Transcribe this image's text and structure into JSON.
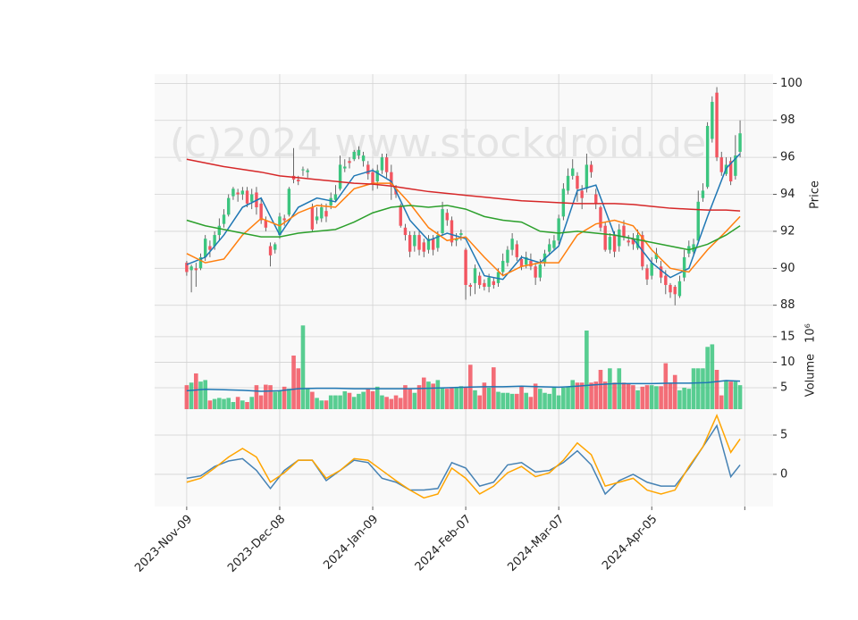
{
  "chart_data": [
    {
      "type": "candlestick",
      "ylabel": "Price",
      "watermark": "(c)2024 www.stockdroid.de",
      "up_color": "#3cc57f",
      "down_color": "#f25560",
      "wick_color": "#444444",
      "ylim": [
        87.6,
        100.5
      ],
      "yticks": [
        88,
        90,
        92,
        94,
        96,
        98,
        100
      ],
      "grid": true,
      "open": [
        90.3,
        89.9,
        90.0,
        90.0,
        90.6,
        91.2,
        91.2,
        91.8,
        92.4,
        92.9,
        93.9,
        94.1,
        94.0,
        94.2,
        93.6,
        94.1,
        93.5,
        92.6,
        91.2,
        91.0,
        91.8,
        92.7,
        92.9,
        95.0,
        94.8,
        95.3,
        95.2,
        93.3,
        92.6,
        92.7,
        93.1,
        93.4,
        93.7,
        94.3,
        95.4,
        95.8,
        95.9,
        96.1,
        95.8,
        95.6,
        95.2,
        94.7,
        95.3,
        96.0,
        95.2,
        94.3,
        93.4,
        92.2,
        91.8,
        91.2,
        91.8,
        91.4,
        91.0,
        91.6,
        91.1,
        91.9,
        93.0,
        92.6,
        91.5,
        91.8,
        91.0,
        89.1,
        89.2,
        89.6,
        89.2,
        89.0,
        89.3,
        89.2,
        89.8,
        90.3,
        91.0,
        91.3,
        90.5,
        90.2,
        90.4,
        90.1,
        89.5,
        90.3,
        90.9,
        91.1,
        91.5,
        92.8,
        94.2,
        95.0,
        95.0,
        94.2,
        94.3,
        95.6,
        94.0,
        93.3,
        92.3,
        91.0,
        91.8,
        91.2,
        92.3,
        91.5,
        91.6,
        91.1,
        91.8,
        90.0,
        89.6,
        90.5,
        90.1,
        89.6,
        89.1,
        89.0,
        88.5,
        89.5,
        90.8,
        90.9,
        91.5,
        93.8,
        94.4,
        97.0,
        99.5,
        96.0,
        95.1,
        95.8,
        95.0,
        96.3
      ],
      "high": [
        90.4,
        90.2,
        90.3,
        90.8,
        91.8,
        91.5,
        92.0,
        92.7,
        93.2,
        94.0,
        94.4,
        94.3,
        94.4,
        94.4,
        94.3,
        94.4,
        93.8,
        92.8,
        91.4,
        91.4,
        93.0,
        92.9,
        94.4,
        96.5,
        95.0,
        95.5,
        95.4,
        93.5,
        93.3,
        93.5,
        93.5,
        94.1,
        94.5,
        96.1,
        95.9,
        96.0,
        96.4,
        96.6,
        96.3,
        95.8,
        95.4,
        95.6,
        96.2,
        96.2,
        95.6,
        94.5,
        93.5,
        92.4,
        92.0,
        92.0,
        92.0,
        91.6,
        91.8,
        91.8,
        92.0,
        93.6,
        93.2,
        92.8,
        91.9,
        92.1,
        91.1,
        89.2,
        90.2,
        89.8,
        89.4,
        89.7,
        89.5,
        90.0,
        90.8,
        91.2,
        91.9,
        91.5,
        90.7,
        90.9,
        90.8,
        90.3,
        90.5,
        91.0,
        91.6,
        91.8,
        92.9,
        94.6,
        95.4,
        95.9,
        95.2,
        94.5,
        96.2,
        95.8,
        94.3,
        93.4,
        92.5,
        91.9,
        92.0,
        92.4,
        92.6,
        91.8,
        91.9,
        92.1,
        92.0,
        90.2,
        90.6,
        91.1,
        90.4,
        89.9,
        89.2,
        89.1,
        89.6,
        91.0,
        91.5,
        91.6,
        94.2,
        94.6,
        97.9,
        99.3,
        99.8,
        96.3,
        96.0,
        96.0,
        97.2,
        98.0
      ],
      "low": [
        89.6,
        88.7,
        89.0,
        89.9,
        90.4,
        90.6,
        91.0,
        91.5,
        92.2,
        92.8,
        93.7,
        93.6,
        93.7,
        93.3,
        93.2,
        92.9,
        92.4,
        92.0,
        90.1,
        90.8,
        91.6,
        92.3,
        92.8,
        94.6,
        94.5,
        95.0,
        94.9,
        92.0,
        92.4,
        92.5,
        92.5,
        93.2,
        93.6,
        94.2,
        95.2,
        95.4,
        95.8,
        95.9,
        95.5,
        94.8,
        94.2,
        94.3,
        95.1,
        94.9,
        93.7,
        93.8,
        92.2,
        91.5,
        90.6,
        90.9,
        90.7,
        90.6,
        90.8,
        90.7,
        90.9,
        91.8,
        92.3,
        91.2,
        91.2,
        91.5,
        88.3,
        88.5,
        88.6,
        88.9,
        88.8,
        88.7,
        88.9,
        89.0,
        89.6,
        90.1,
        90.7,
        90.4,
        89.9,
        90.0,
        89.9,
        89.1,
        89.3,
        90.1,
        90.7,
        91.0,
        91.3,
        92.6,
        94.0,
        94.8,
        93.6,
        93.2,
        94.1,
        94.9,
        93.2,
        92.0,
        90.9,
        90.8,
        90.6,
        90.9,
        91.5,
        91.2,
        91.0,
        91.0,
        89.9,
        89.1,
        89.4,
        90.3,
        89.2,
        88.6,
        88.4,
        88.0,
        88.4,
        89.3,
        90.6,
        90.7,
        91.3,
        93.6,
        94.3,
        96.8,
        95.8,
        95.0,
        95.0,
        94.5,
        94.8,
        96.0
      ],
      "close": [
        89.8,
        90.1,
        89.9,
        90.6,
        91.6,
        91.0,
        91.8,
        92.3,
        92.9,
        93.8,
        94.3,
        94.0,
        94.2,
        93.5,
        94.0,
        93.3,
        92.6,
        92.2,
        90.7,
        91.3,
        92.8,
        92.6,
        94.3,
        94.8,
        94.7,
        95.35,
        95.3,
        92.1,
        92.8,
        93.3,
        92.8,
        93.8,
        94.0,
        95.6,
        95.5,
        95.7,
        96.3,
        96.4,
        96.1,
        95.1,
        94.6,
        95.3,
        96.0,
        95.2,
        94.5,
        94.0,
        92.3,
        91.8,
        90.9,
        91.8,
        91.0,
        90.9,
        91.6,
        91.0,
        91.8,
        93.2,
        92.6,
        91.4,
        91.6,
        91.9,
        89.1,
        89.0,
        90.0,
        89.1,
        89.0,
        89.5,
        89.1,
        89.8,
        90.4,
        91.0,
        91.6,
        90.6,
        90.1,
        90.6,
        90.1,
        89.5,
        90.2,
        90.8,
        91.3,
        91.5,
        92.7,
        94.3,
        95.0,
        95.4,
        94.3,
        93.8,
        95.6,
        95.2,
        93.5,
        92.2,
        91.0,
        91.7,
        90.9,
        92.1,
        91.7,
        91.4,
        91.3,
        91.8,
        90.1,
        89.4,
        90.3,
        90.8,
        89.5,
        89.1,
        88.7,
        88.6,
        89.3,
        90.6,
        91.2,
        91.3,
        93.6,
        94.2,
        97.7,
        99.0,
        96.0,
        95.2,
        95.6,
        94.7,
        96.1,
        97.3
      ],
      "series": [
        {
          "color": "#1f77b4",
          "x": [
            0,
            4,
            8,
            12,
            16,
            20,
            24,
            28,
            32,
            36,
            40,
            44,
            48,
            52,
            56,
            60,
            64,
            68,
            72,
            76,
            80,
            84,
            88,
            92,
            96,
            100,
            104,
            108,
            112,
            116,
            119
          ],
          "values": [
            90.2,
            90.6,
            91.8,
            93.3,
            93.8,
            91.8,
            93.3,
            93.8,
            93.6,
            95.0,
            95.3,
            94.7,
            92.6,
            91.5,
            91.9,
            91.6,
            89.6,
            89.4,
            90.6,
            90.3,
            91.2,
            94.2,
            94.5,
            91.8,
            91.6,
            90.3,
            89.5,
            90.0,
            92.8,
            95.4,
            96.2
          ]
        },
        {
          "color": "#ff7f0e",
          "x": [
            0,
            4,
            8,
            12,
            16,
            20,
            24,
            28,
            32,
            36,
            40,
            44,
            48,
            52,
            56,
            60,
            64,
            68,
            72,
            76,
            80,
            84,
            88,
            92,
            96,
            100,
            104,
            108,
            112,
            116,
            119
          ],
          "values": [
            90.8,
            90.3,
            90.5,
            91.8,
            92.7,
            92.3,
            93.0,
            93.4,
            93.3,
            94.3,
            94.6,
            94.6,
            93.5,
            92.2,
            91.5,
            91.7,
            90.6,
            89.6,
            90.1,
            90.3,
            90.3,
            91.8,
            92.4,
            92.6,
            92.3,
            91.0,
            90.0,
            89.8,
            91.0,
            92.0,
            92.8
          ]
        },
        {
          "color": "#2ca02c",
          "x": [
            0,
            4,
            8,
            12,
            16,
            20,
            24,
            28,
            32,
            36,
            40,
            44,
            48,
            52,
            56,
            60,
            64,
            68,
            72,
            76,
            80,
            84,
            88,
            92,
            96,
            100,
            104,
            108,
            112,
            116,
            119
          ],
          "values": [
            92.6,
            92.3,
            92.1,
            91.9,
            91.7,
            91.7,
            91.9,
            92.0,
            92.1,
            92.5,
            93.0,
            93.3,
            93.4,
            93.3,
            93.4,
            93.2,
            92.8,
            92.6,
            92.5,
            92.0,
            91.9,
            92.0,
            91.9,
            91.8,
            91.6,
            91.4,
            91.2,
            91.0,
            91.3,
            91.8,
            92.3
          ]
        },
        {
          "color": "#d62728",
          "x": [
            0,
            4,
            8,
            12,
            16,
            20,
            24,
            28,
            32,
            36,
            40,
            44,
            48,
            52,
            56,
            60,
            64,
            68,
            72,
            76,
            80,
            84,
            88,
            92,
            96,
            100,
            104,
            108,
            112,
            116,
            119
          ],
          "values": [
            95.9,
            95.7,
            95.5,
            95.35,
            95.2,
            95.0,
            94.9,
            94.8,
            94.7,
            94.6,
            94.55,
            94.45,
            94.3,
            94.15,
            94.05,
            93.95,
            93.85,
            93.75,
            93.65,
            93.6,
            93.55,
            93.5,
            93.5,
            93.5,
            93.45,
            93.35,
            93.25,
            93.2,
            93.15,
            93.15,
            93.1
          ]
        }
      ]
    },
    {
      "type": "bar",
      "ylabel": "Volume",
      "offset_label": "10⁶",
      "ylim": [
        0.8,
        19.7
      ],
      "yticks": [
        5,
        10,
        15
      ],
      "grid": true,
      "values": [
        5.5,
        6,
        7.8,
        6.2,
        6.5,
        2.5,
        2.8,
        3,
        2.8,
        3,
        2.2,
        3.2,
        2.5,
        2.2,
        3.2,
        5.5,
        3.5,
        5.6,
        5.5,
        4.2,
        4.5,
        5.2,
        4.8,
        11.3,
        8.8,
        17.2,
        4.8,
        4.2,
        3,
        2.5,
        2.5,
        3.5,
        3.5,
        3.5,
        4.3,
        4,
        3.2,
        3.8,
        4.2,
        4.8,
        4.3,
        5.2,
        3.5,
        3.2,
        2.8,
        3.5,
        3,
        5.5,
        4.8,
        4,
        5.5,
        7,
        6.2,
        5.8,
        6.5,
        5,
        4.8,
        5,
        5,
        5.3,
        5,
        9.5,
        4.5,
        3.5,
        6,
        5,
        9,
        4.2,
        4,
        4,
        3.8,
        3.8,
        5.2,
        4,
        3.2,
        5.8,
        4.8,
        4,
        3.8,
        5.2,
        3.5,
        5,
        5.2,
        6.5,
        6,
        6,
        16.2,
        6,
        6.2,
        8.5,
        6.2,
        8.8,
        6,
        8.8,
        6,
        5.8,
        5.5,
        4.5,
        5.2,
        5.5,
        5.5,
        5.3,
        5.3,
        9.8,
        5.8,
        7.5,
        4.5,
        5,
        4.8,
        8.8,
        8.8,
        8.8,
        13,
        13.5,
        8.5,
        3.5,
        6.5,
        6.2,
        6.2,
        5.5
      ],
      "series": [
        {
          "color": "#1f77b4",
          "x": [
            0,
            4,
            8,
            12,
            16,
            20,
            24,
            28,
            32,
            36,
            40,
            44,
            48,
            52,
            56,
            60,
            64,
            68,
            72,
            76,
            80,
            84,
            88,
            92,
            96,
            100,
            104,
            108,
            112,
            116,
            119
          ],
          "values": [
            4.4,
            4.7,
            4.6,
            4.5,
            4.3,
            4.4,
            4.8,
            4.9,
            4.9,
            4.8,
            4.8,
            4.8,
            4.8,
            4.9,
            5.0,
            5.1,
            5.2,
            5.2,
            5.3,
            5.2,
            5.1,
            5.3,
            5.6,
            5.8,
            5.8,
            5.8,
            5.9,
            5.9,
            6.0,
            6.4,
            6.3
          ]
        }
      ]
    },
    {
      "type": "line",
      "xlim": [
        -6.9,
        126.1
      ],
      "xticks": [
        {
          "value": 0,
          "label": "2023-Nov-09"
        },
        {
          "value": 20,
          "label": "2023-Dec-08"
        },
        {
          "value": 40,
          "label": "2024-Jan-09"
        },
        {
          "value": 60,
          "label": "2024-Feb-07"
        },
        {
          "value": 80,
          "label": "2024-Mar-07"
        },
        {
          "value": 100,
          "label": "2024-Apr-05"
        },
        {
          "value": 120,
          "label": null
        }
      ],
      "ylim": [
        -4.1,
        8.3
      ],
      "yticks": [
        0,
        5
      ],
      "grid": true,
      "series": [
        {
          "color": "#4682b4",
          "x": [
            0,
            3,
            6,
            9,
            12,
            15,
            18,
            21,
            24,
            27,
            30,
            33,
            36,
            39,
            42,
            45,
            48,
            51,
            54,
            57,
            60,
            63,
            66,
            69,
            72,
            75,
            78,
            81,
            84,
            87,
            90,
            93,
            96,
            99,
            102,
            105,
            108,
            111,
            114,
            117,
            119
          ],
          "values": [
            -0.5,
            -0.2,
            1.0,
            1.7,
            2.0,
            0.5,
            -1.8,
            0.5,
            1.8,
            1.8,
            -0.8,
            0.5,
            1.8,
            1.5,
            -0.5,
            -1.0,
            -2.0,
            -2.0,
            -1.8,
            1.5,
            0.8,
            -1.5,
            -1.0,
            1.2,
            1.5,
            0.3,
            0.5,
            1.5,
            3.0,
            1.2,
            -2.5,
            -0.8,
            0,
            -1.0,
            -1.5,
            -1.5,
            0.8,
            3.5,
            6.2,
            -0.3,
            1.2
          ]
        },
        {
          "color": "#ffa500",
          "x": [
            0,
            3,
            6,
            9,
            12,
            15,
            18,
            21,
            24,
            27,
            30,
            33,
            36,
            39,
            42,
            45,
            48,
            51,
            54,
            57,
            60,
            63,
            66,
            69,
            72,
            75,
            78,
            81,
            84,
            87,
            90,
            93,
            96,
            99,
            102,
            105,
            108,
            111,
            114,
            117,
            119
          ],
          "values": [
            -1.0,
            -0.5,
            0.8,
            2.2,
            3.3,
            2.2,
            -1.0,
            0.2,
            1.8,
            1.8,
            -0.5,
            0.5,
            2.0,
            1.8,
            0.5,
            -0.8,
            -2.0,
            -3.0,
            -2.5,
            0.8,
            -0.5,
            -2.5,
            -1.5,
            0.2,
            1.0,
            -0.3,
            0.2,
            1.8,
            4.0,
            2.5,
            -1.5,
            -1.0,
            -0.5,
            -2.0,
            -2.5,
            -2.0,
            1.0,
            3.5,
            7.5,
            2.8,
            4.5
          ]
        }
      ]
    }
  ]
}
